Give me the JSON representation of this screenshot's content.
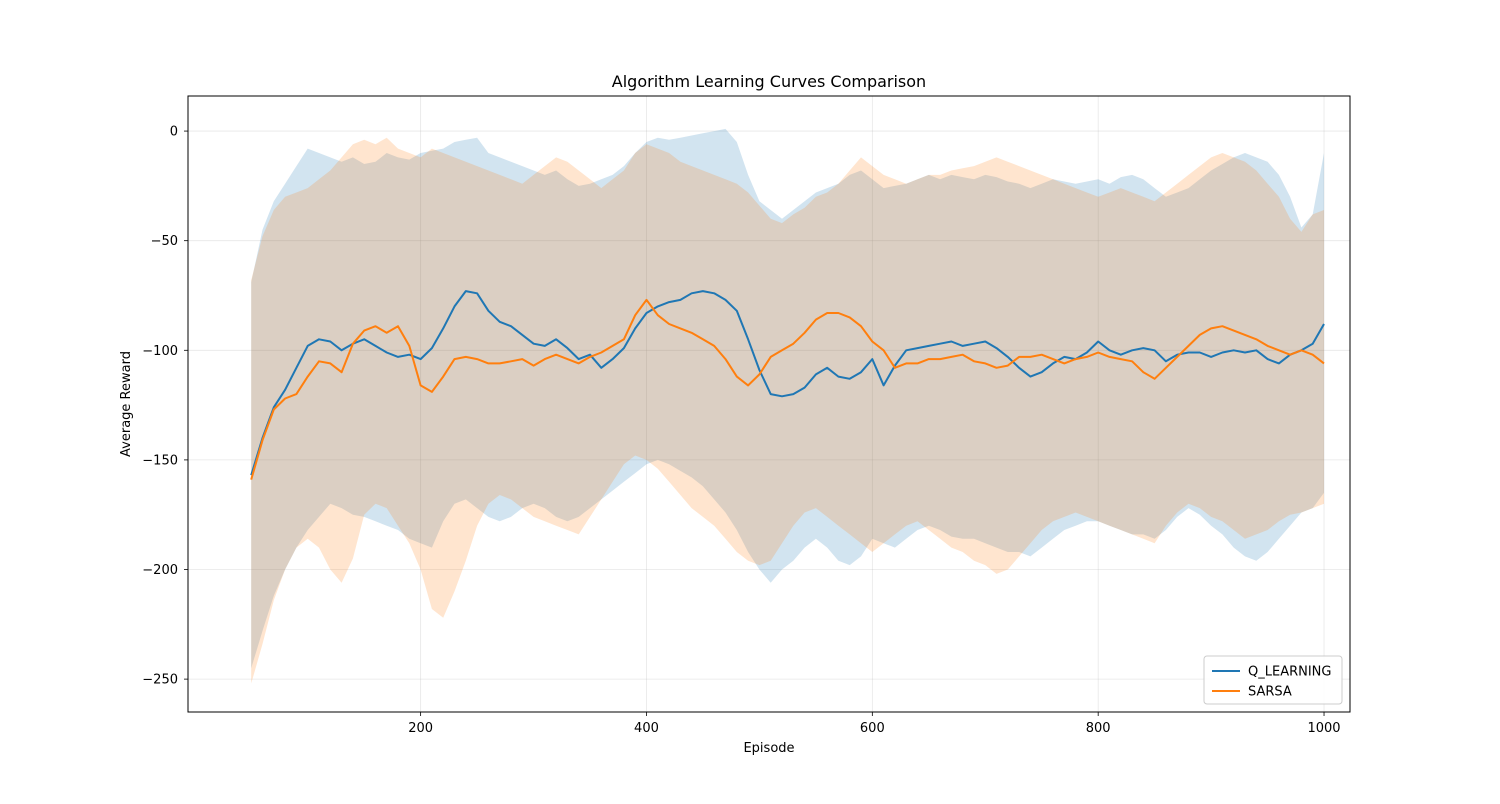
{
  "chart_data": {
    "type": "line",
    "title": "Algorithm Learning Curves Comparison",
    "xlabel": "Episode",
    "ylabel": "Average Reward",
    "xlim": [
      -6,
      1023
    ],
    "ylim": [
      -265,
      16
    ],
    "xticks": [
      200,
      400,
      600,
      800,
      1000
    ],
    "yticks": [
      0,
      -50,
      -100,
      -150,
      -200,
      -250
    ],
    "grid": true,
    "legend_position": "bottom-right",
    "series": [
      {
        "name": "Q_LEARNING",
        "color": "#1f77b4",
        "band_opacity": 0.2,
        "x": [
          50,
          60,
          70,
          80,
          90,
          100,
          110,
          120,
          130,
          140,
          150,
          160,
          170,
          180,
          190,
          200,
          210,
          220,
          230,
          240,
          250,
          260,
          270,
          280,
          290,
          300,
          310,
          320,
          330,
          340,
          350,
          360,
          370,
          380,
          390,
          400,
          410,
          420,
          430,
          440,
          450,
          460,
          470,
          480,
          490,
          500,
          510,
          520,
          530,
          540,
          550,
          560,
          570,
          580,
          590,
          600,
          610,
          620,
          630,
          640,
          650,
          660,
          670,
          680,
          690,
          700,
          710,
          720,
          730,
          740,
          750,
          760,
          770,
          780,
          790,
          800,
          810,
          820,
          830,
          840,
          850,
          860,
          870,
          880,
          890,
          900,
          910,
          920,
          930,
          940,
          950,
          960,
          970,
          980,
          990,
          1000
        ],
        "mean": [
          -157,
          -140,
          -126,
          -118,
          -108,
          -98,
          -95,
          -96,
          -100,
          -97,
          -95,
          -98,
          -101,
          -103,
          -102,
          -104,
          -99,
          -90,
          -80,
          -73,
          -74,
          -82,
          -87,
          -89,
          -93,
          -97,
          -98,
          -95,
          -99,
          -104,
          -102,
          -108,
          -104,
          -99,
          -90,
          -83,
          -80,
          -78,
          -77,
          -74,
          -73,
          -74,
          -77,
          -82,
          -95,
          -109,
          -120,
          -121,
          -120,
          -117,
          -111,
          -108,
          -112,
          -113,
          -110,
          -104,
          -116,
          -107,
          -100,
          -99,
          -98,
          -97,
          -96,
          -98,
          -97,
          -96,
          -99,
          -103,
          -108,
          -112,
          -110,
          -106,
          -103,
          -104,
          -101,
          -96,
          -100,
          -102,
          -100,
          -99,
          -100,
          -105,
          -102,
          -101,
          -101,
          -103,
          -101,
          -100,
          -101,
          -100,
          -104,
          -106,
          -102,
          -100,
          -97,
          -88
        ],
        "upper": [
          -69,
          -45,
          -32,
          -24,
          -16,
          -8,
          -10,
          -12,
          -14,
          -12,
          -15,
          -14,
          -10,
          -12,
          -13,
          -10,
          -9,
          -8,
          -5,
          -4,
          -3,
          -10,
          -12,
          -14,
          -16,
          -18,
          -20,
          -18,
          -22,
          -25,
          -24,
          -22,
          -20,
          -16,
          -10,
          -5,
          -3,
          -4,
          -3,
          -2,
          -1,
          0,
          1,
          -5,
          -20,
          -32,
          -36,
          -40,
          -36,
          -32,
          -28,
          -26,
          -24,
          -20,
          -18,
          -22,
          -26,
          -25,
          -24,
          -22,
          -20,
          -22,
          -20,
          -21,
          -22,
          -20,
          -21,
          -23,
          -24,
          -26,
          -24,
          -22,
          -23,
          -24,
          -23,
          -22,
          -24,
          -21,
          -20,
          -22,
          -26,
          -30,
          -28,
          -26,
          -22,
          -18,
          -15,
          -12,
          -10,
          -12,
          -14,
          -20,
          -30,
          -44,
          -38,
          -10
        ],
        "lower": [
          -245,
          -228,
          -212,
          -200,
          -190,
          -182,
          -176,
          -170,
          -172,
          -175,
          -176,
          -178,
          -180,
          -182,
          -186,
          -188,
          -190,
          -178,
          -170,
          -168,
          -172,
          -176,
          -178,
          -176,
          -172,
          -170,
          -172,
          -176,
          -178,
          -176,
          -172,
          -168,
          -164,
          -160,
          -156,
          -152,
          -150,
          -152,
          -155,
          -158,
          -162,
          -168,
          -174,
          -182,
          -192,
          -200,
          -206,
          -200,
          -196,
          -190,
          -186,
          -190,
          -196,
          -198,
          -194,
          -186,
          -188,
          -190,
          -186,
          -182,
          -180,
          -182,
          -185,
          -186,
          -186,
          -188,
          -190,
          -192,
          -192,
          -194,
          -190,
          -186,
          -182,
          -180,
          -178,
          -178,
          -180,
          -182,
          -184,
          -184,
          -186,
          -182,
          -176,
          -172,
          -175,
          -180,
          -184,
          -190,
          -194,
          -196,
          -192,
          -186,
          -180,
          -174,
          -172,
          -165
        ]
      },
      {
        "name": "SARSA",
        "color": "#ff7f0e",
        "band_opacity": 0.2,
        "x": [
          50,
          60,
          70,
          80,
          90,
          100,
          110,
          120,
          130,
          140,
          150,
          160,
          170,
          180,
          190,
          200,
          210,
          220,
          230,
          240,
          250,
          260,
          270,
          280,
          290,
          300,
          310,
          320,
          330,
          340,
          350,
          360,
          370,
          380,
          390,
          400,
          410,
          420,
          430,
          440,
          450,
          460,
          470,
          480,
          490,
          500,
          510,
          520,
          530,
          540,
          550,
          560,
          570,
          580,
          590,
          600,
          610,
          620,
          630,
          640,
          650,
          660,
          670,
          680,
          690,
          700,
          710,
          720,
          730,
          740,
          750,
          760,
          770,
          780,
          790,
          800,
          810,
          820,
          830,
          840,
          850,
          860,
          870,
          880,
          890,
          900,
          910,
          920,
          930,
          940,
          950,
          960,
          970,
          980,
          990,
          1000
        ],
        "mean": [
          -159,
          -141,
          -127,
          -122,
          -120,
          -112,
          -105,
          -106,
          -110,
          -97,
          -91,
          -89,
          -92,
          -89,
          -98,
          -116,
          -119,
          -112,
          -104,
          -103,
          -104,
          -106,
          -106,
          -105,
          -104,
          -107,
          -104,
          -102,
          -104,
          -106,
          -103,
          -101,
          -98,
          -95,
          -84,
          -77,
          -84,
          -88,
          -90,
          -92,
          -95,
          -98,
          -104,
          -112,
          -116,
          -111,
          -103,
          -100,
          -97,
          -92,
          -86,
          -83,
          -83,
          -85,
          -89,
          -96,
          -100,
          -108,
          -106,
          -106,
          -104,
          -104,
          -103,
          -102,
          -105,
          -106,
          -108,
          -107,
          -103,
          -103,
          -102,
          -104,
          -106,
          -104,
          -103,
          -101,
          -103,
          -104,
          -105,
          -110,
          -113,
          -108,
          -103,
          -98,
          -93,
          -90,
          -89,
          -91,
          -93,
          -95,
          -98,
          -100,
          -102,
          -100,
          -102,
          -106
        ],
        "upper": [
          -68,
          -48,
          -36,
          -30,
          -28,
          -26,
          -22,
          -18,
          -12,
          -6,
          -4,
          -6,
          -3,
          -8,
          -10,
          -12,
          -8,
          -10,
          -12,
          -14,
          -16,
          -18,
          -20,
          -22,
          -24,
          -20,
          -16,
          -12,
          -14,
          -18,
          -22,
          -26,
          -22,
          -18,
          -10,
          -6,
          -8,
          -10,
          -14,
          -16,
          -18,
          -20,
          -22,
          -24,
          -28,
          -34,
          -40,
          -42,
          -38,
          -35,
          -30,
          -28,
          -24,
          -18,
          -12,
          -16,
          -20,
          -22,
          -24,
          -22,
          -20,
          -20,
          -18,
          -17,
          -16,
          -14,
          -12,
          -14,
          -16,
          -18,
          -20,
          -22,
          -24,
          -26,
          -28,
          -30,
          -28,
          -26,
          -28,
          -30,
          -32,
          -28,
          -24,
          -20,
          -16,
          -12,
          -10,
          -12,
          -14,
          -18,
          -24,
          -30,
          -40,
          -46,
          -38,
          -36
        ],
        "lower": [
          -252,
          -234,
          -214,
          -200,
          -190,
          -186,
          -190,
          -200,
          -206,
          -195,
          -175,
          -170,
          -172,
          -180,
          -188,
          -200,
          -218,
          -222,
          -210,
          -196,
          -180,
          -170,
          -166,
          -168,
          -172,
          -176,
          -178,
          -180,
          -182,
          -184,
          -176,
          -168,
          -160,
          -152,
          -148,
          -150,
          -154,
          -160,
          -166,
          -172,
          -176,
          -180,
          -186,
          -192,
          -196,
          -198,
          -196,
          -188,
          -180,
          -174,
          -172,
          -176,
          -180,
          -184,
          -188,
          -192,
          -188,
          -184,
          -180,
          -178,
          -182,
          -186,
          -190,
          -192,
          -196,
          -198,
          -202,
          -200,
          -194,
          -188,
          -182,
          -178,
          -176,
          -174,
          -176,
          -178,
          -180,
          -182,
          -184,
          -186,
          -188,
          -180,
          -174,
          -170,
          -172,
          -176,
          -178,
          -182,
          -186,
          -184,
          -182,
          -178,
          -175,
          -174,
          -172,
          -170
        ]
      }
    ]
  }
}
